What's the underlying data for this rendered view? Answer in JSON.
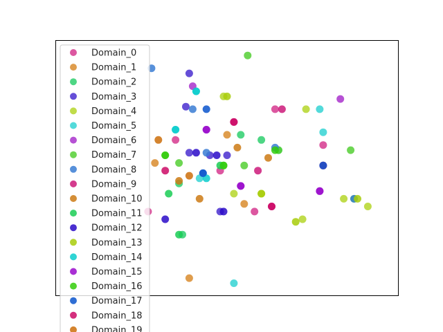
{
  "chart_data": {
    "type": "scatter",
    "title": "",
    "xlabel": "",
    "ylabel": "",
    "xlim": [
      0,
      100
    ],
    "ylim": [
      0,
      100
    ],
    "grid": false,
    "axis_ticks": false,
    "legend_position": "upper-left",
    "series": [
      {
        "name": "Domain_0",
        "color": "#d63a8f",
        "points": [
          [
            48,
            49
          ],
          [
            35,
            61
          ],
          [
            27,
            33
          ],
          [
            58,
            33
          ],
          [
            64,
            73
          ],
          [
            78,
            59
          ]
        ]
      },
      {
        "name": "Domain_1",
        "color": "#d98c2e",
        "points": [
          [
            29,
            52
          ],
          [
            50,
            63
          ],
          [
            55,
            36
          ],
          [
            39,
            7
          ]
        ]
      },
      {
        "name": "Domain_2",
        "color": "#2fcf6e",
        "points": [
          [
            36,
            44
          ],
          [
            60,
            61
          ],
          [
            65,
            57
          ],
          [
            54,
            63
          ],
          [
            37,
            24
          ]
        ]
      },
      {
        "name": "Domain_3",
        "color": "#4a2fd0",
        "points": [
          [
            38,
            74
          ],
          [
            39,
            56
          ],
          [
            45,
            55
          ],
          [
            50,
            55
          ],
          [
            48,
            33
          ],
          [
            39,
            87
          ]
        ]
      },
      {
        "name": "Domain_4",
        "color": "#b5d62a",
        "points": [
          [
            49,
            78
          ],
          [
            52,
            40
          ],
          [
            60,
            40
          ],
          [
            73,
            73
          ],
          [
            84,
            38
          ],
          [
            91,
            35
          ],
          [
            72,
            30
          ]
        ]
      },
      {
        "name": "Domain_5",
        "color": "#35d4d4",
        "points": [
          [
            35,
            65
          ],
          [
            42,
            46
          ],
          [
            77,
            73
          ],
          [
            78,
            64
          ],
          [
            52,
            5
          ],
          [
            41,
            80
          ]
        ]
      },
      {
        "name": "Domain_6",
        "color": "#a932cc",
        "points": [
          [
            44,
            65
          ],
          [
            54,
            43
          ],
          [
            77,
            41
          ],
          [
            83,
            77
          ],
          [
            40,
            82
          ]
        ]
      },
      {
        "name": "Domain_7",
        "color": "#55cf35",
        "points": [
          [
            32,
            55
          ],
          [
            36,
            52
          ],
          [
            49,
            51
          ],
          [
            55,
            51
          ],
          [
            65,
            57
          ],
          [
            86,
            57
          ],
          [
            87,
            38
          ],
          [
            56,
            94
          ]
        ]
      },
      {
        "name": "Domain_8",
        "color": "#3a7dd4",
        "points": [
          [
            40,
            73
          ],
          [
            44,
            56
          ],
          [
            43,
            48
          ],
          [
            64,
            58
          ],
          [
            78,
            51
          ],
          [
            87,
            38
          ],
          [
            28,
            89
          ]
        ]
      },
      {
        "name": "Domain_9",
        "color": "#cc1a7a",
        "points": [
          [
            52,
            68
          ],
          [
            59,
            49
          ],
          [
            63,
            35
          ],
          [
            78,
            51
          ],
          [
            66,
            73
          ]
        ]
      },
      {
        "name": "Domain_10",
        "color": "#cc7a14",
        "points": [
          [
            36,
            45
          ],
          [
            42,
            38
          ],
          [
            53,
            58
          ],
          [
            62,
            54
          ]
        ]
      },
      {
        "name": "Domain_11",
        "color": "#1acc55",
        "points": [
          [
            33,
            40
          ],
          [
            36,
            24
          ],
          [
            48,
            51
          ]
        ]
      },
      {
        "name": "Domain_12",
        "color": "#2a0ac8",
        "points": [
          [
            41,
            56
          ],
          [
            47,
            55
          ],
          [
            49,
            33
          ],
          [
            32,
            30
          ]
        ]
      },
      {
        "name": "Domain_13",
        "color": "#a8cc0a",
        "points": [
          [
            50,
            78
          ],
          [
            60,
            40
          ],
          [
            70,
            29
          ],
          [
            88,
            38
          ]
        ]
      },
      {
        "name": "Domain_14",
        "color": "#0acccc",
        "points": [
          [
            44,
            46
          ],
          [
            35,
            65
          ],
          [
            41,
            80
          ]
        ]
      },
      {
        "name": "Domain_15",
        "color": "#9a0acc",
        "points": [
          [
            54,
            43
          ],
          [
            77,
            41
          ],
          [
            44,
            65
          ]
        ]
      },
      {
        "name": "Domain_16",
        "color": "#33cc0a",
        "points": [
          [
            49,
            51
          ],
          [
            64,
            57
          ],
          [
            32,
            55
          ]
        ]
      },
      {
        "name": "Domain_17",
        "color": "#0a55cc",
        "points": [
          [
            43,
            48
          ],
          [
            44,
            73
          ],
          [
            78,
            51
          ]
        ]
      },
      {
        "name": "Domain_18",
        "color": "#cc0a66",
        "points": [
          [
            63,
            35
          ],
          [
            32,
            49
          ],
          [
            52,
            68
          ]
        ]
      },
      {
        "name": "Domain_19",
        "color": "#cc6e0a",
        "points": [
          [
            39,
            47
          ],
          [
            30,
            61
          ]
        ]
      }
    ]
  }
}
